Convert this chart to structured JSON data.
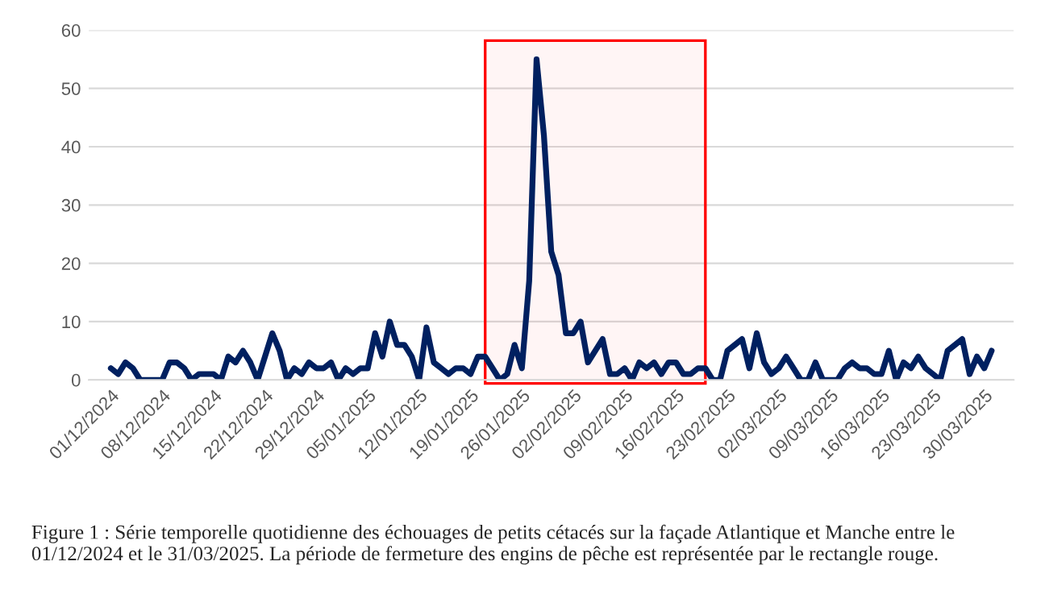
{
  "chart_data": {
    "type": "line",
    "x": [
      "2024-12-01",
      "2024-12-02",
      "2024-12-03",
      "2024-12-04",
      "2024-12-05",
      "2024-12-06",
      "2024-12-07",
      "2024-12-08",
      "2024-12-09",
      "2024-12-10",
      "2024-12-11",
      "2024-12-12",
      "2024-12-13",
      "2024-12-14",
      "2024-12-15",
      "2024-12-16",
      "2024-12-17",
      "2024-12-18",
      "2024-12-19",
      "2024-12-20",
      "2024-12-21",
      "2024-12-22",
      "2024-12-23",
      "2024-12-24",
      "2024-12-25",
      "2024-12-26",
      "2024-12-27",
      "2024-12-28",
      "2024-12-29",
      "2024-12-30",
      "2024-12-31",
      "2025-01-01",
      "2025-01-02",
      "2025-01-03",
      "2025-01-04",
      "2025-01-05",
      "2025-01-06",
      "2025-01-07",
      "2025-01-08",
      "2025-01-09",
      "2025-01-10",
      "2025-01-11",
      "2025-01-12",
      "2025-01-13",
      "2025-01-14",
      "2025-01-15",
      "2025-01-16",
      "2025-01-17",
      "2025-01-18",
      "2025-01-19",
      "2025-01-20",
      "2025-01-21",
      "2025-01-22",
      "2025-01-23",
      "2025-01-24",
      "2025-01-25",
      "2025-01-26",
      "2025-01-27",
      "2025-01-28",
      "2025-01-29",
      "2025-01-30",
      "2025-01-31",
      "2025-02-01",
      "2025-02-02",
      "2025-02-03",
      "2025-02-04",
      "2025-02-05",
      "2025-02-06",
      "2025-02-07",
      "2025-02-08",
      "2025-02-09",
      "2025-02-10",
      "2025-02-11",
      "2025-02-12",
      "2025-02-13",
      "2025-02-14",
      "2025-02-15",
      "2025-02-16",
      "2025-02-17",
      "2025-02-18",
      "2025-02-19",
      "2025-02-20",
      "2025-02-21",
      "2025-02-22",
      "2025-02-23",
      "2025-02-24",
      "2025-02-25",
      "2025-02-26",
      "2025-02-27",
      "2025-02-28",
      "2025-03-01",
      "2025-03-02",
      "2025-03-03",
      "2025-03-04",
      "2025-03-05",
      "2025-03-06",
      "2025-03-07",
      "2025-03-08",
      "2025-03-09",
      "2025-03-10",
      "2025-03-11",
      "2025-03-12",
      "2025-03-13",
      "2025-03-14",
      "2025-03-15",
      "2025-03-16",
      "2025-03-17",
      "2025-03-18",
      "2025-03-19",
      "2025-03-20",
      "2025-03-21",
      "2025-03-22",
      "2025-03-23",
      "2025-03-24",
      "2025-03-25",
      "2025-03-26",
      "2025-03-27",
      "2025-03-28",
      "2025-03-29",
      "2025-03-30",
      "2025-03-31"
    ],
    "series": [
      {
        "color": "#002060",
        "values": [
          2,
          1,
          3,
          2,
          0,
          0,
          0,
          0,
          3,
          3,
          2,
          0,
          1,
          1,
          1,
          0,
          4,
          3,
          5,
          3,
          0,
          4,
          8,
          5,
          0,
          2,
          1,
          3,
          2,
          2,
          3,
          0,
          2,
          1,
          2,
          2,
          8,
          4,
          10,
          6,
          6,
          4,
          0,
          9,
          3,
          2,
          1,
          2,
          2,
          1,
          4,
          4,
          2,
          0,
          1,
          6,
          2,
          17,
          55,
          42,
          22,
          18,
          8,
          8,
          10,
          3,
          5,
          7,
          1,
          1,
          2,
          0,
          3,
          2,
          3,
          1,
          3,
          3,
          1,
          1,
          2,
          2,
          0,
          0,
          5,
          6,
          7,
          2,
          8,
          3,
          1,
          2,
          4,
          2,
          0,
          0,
          3,
          0,
          0,
          0,
          2,
          3,
          2,
          2,
          1,
          1,
          5,
          0,
          3,
          2,
          4,
          2,
          1,
          0,
          5,
          6,
          7,
          1,
          4,
          2,
          5
        ]
      }
    ],
    "xlim": [
      "2024-11-28",
      "2025-04-03"
    ],
    "xticks": [
      {
        "value": "2024-12-01",
        "label": "01/12/2024"
      },
      {
        "value": "2024-12-08",
        "label": "08/12/2024"
      },
      {
        "value": "2024-12-15",
        "label": "15/12/2024"
      },
      {
        "value": "2024-12-22",
        "label": "22/12/2024"
      },
      {
        "value": "2024-12-29",
        "label": "29/12/2024"
      },
      {
        "value": "2025-01-05",
        "label": "05/01/2025"
      },
      {
        "value": "2025-01-12",
        "label": "12/01/2025"
      },
      {
        "value": "2025-01-19",
        "label": "19/01/2025"
      },
      {
        "value": "2025-01-26",
        "label": "26/01/2025"
      },
      {
        "value": "2025-02-02",
        "label": "02/02/2025"
      },
      {
        "value": "2025-02-09",
        "label": "09/02/2025"
      },
      {
        "value": "2025-02-16",
        "label": "16/02/2025"
      },
      {
        "value": "2025-02-23",
        "label": "23/02/2025"
      },
      {
        "value": "2025-03-02",
        "label": "02/03/2025"
      },
      {
        "value": "2025-03-09",
        "label": "09/03/2025"
      },
      {
        "value": "2025-03-16",
        "label": "16/03/2025"
      },
      {
        "value": "2025-03-23",
        "label": "23/03/2025"
      },
      {
        "value": "2025-03-30",
        "label": "30/03/2025"
      }
    ],
    "ylim": [
      0,
      60
    ],
    "yticks": [
      0,
      10,
      20,
      30,
      40,
      50,
      60
    ],
    "grid": "y",
    "legend": false,
    "marker": "none",
    "line_style": "solid",
    "bands": [
      {
        "axis": "x",
        "from": "2025-01-21",
        "to": "2025-02-20",
        "color": "#ff0000"
      }
    ],
    "annotations": [
      "Figure 1 : Série temporelle quotidienne des échouages de petits cétacés sur la façade Atlantique et Manche entre le 01/12/2024 et le 31/03/2025. La période de fermeture des engins de pêche est représentée par le rectangle rouge."
    ]
  }
}
